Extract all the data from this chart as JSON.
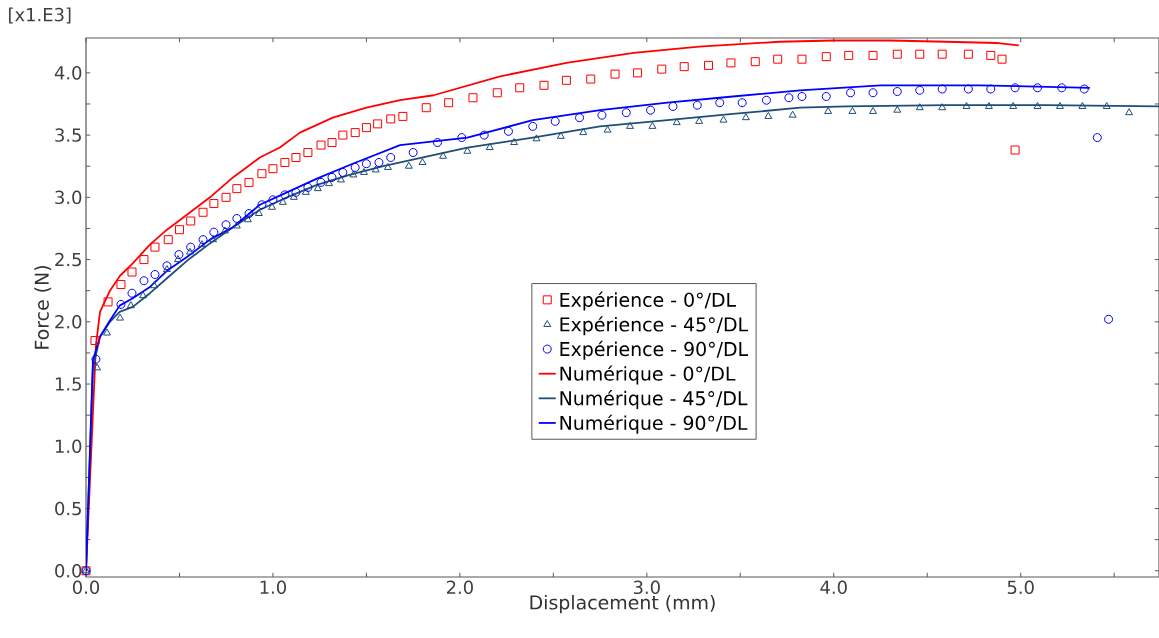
{
  "chart_data": {
    "type": "line",
    "xlabel": "Displacement (mm)",
    "ylabel": "Force (N)",
    "annotations": [
      "[x1.E3]"
    ],
    "xlim": [
      0,
      5.74
    ],
    "ylim": [
      -0.05,
      4.28
    ],
    "xticks": [
      {
        "value": 0,
        "label": "0.0"
      },
      {
        "value": 0.5,
        "label": null
      },
      {
        "value": 1,
        "label": "1.0"
      },
      {
        "value": 1.5,
        "label": null
      },
      {
        "value": 2,
        "label": "2.0"
      },
      {
        "value": 2.5,
        "label": null
      },
      {
        "value": 3,
        "label": "3.0"
      },
      {
        "value": 3.5,
        "label": null
      },
      {
        "value": 4,
        "label": "4.0"
      },
      {
        "value": 4.5,
        "label": null
      },
      {
        "value": 5,
        "label": "5.0"
      },
      {
        "value": 5.5,
        "label": null
      }
    ],
    "yticks": [
      {
        "value": 0,
        "label": "0.0"
      },
      {
        "value": 0.25,
        "label": null
      },
      {
        "value": 0.5,
        "label": "0.5"
      },
      {
        "value": 0.75,
        "label": null
      },
      {
        "value": 1,
        "label": "1.0"
      },
      {
        "value": 1.25,
        "label": null
      },
      {
        "value": 1.5,
        "label": "1.5"
      },
      {
        "value": 1.75,
        "label": null
      },
      {
        "value": 2,
        "label": "2.0"
      },
      {
        "value": 2.25,
        "label": null
      },
      {
        "value": 2.5,
        "label": "2.5"
      },
      {
        "value": 2.75,
        "label": null
      },
      {
        "value": 3,
        "label": "3.0"
      },
      {
        "value": 3.25,
        "label": null
      },
      {
        "value": 3.5,
        "label": "3.5"
      },
      {
        "value": 3.75,
        "label": null
      },
      {
        "value": 4,
        "label": "4.0"
      }
    ],
    "legend": "center",
    "line_style": "solid",
    "series": [
      {
        "name": "Expérience - 0°/DL",
        "type": "scatter",
        "marker": "square",
        "color": "#ff0000",
        "x": [
          0,
          0.048,
          0.118,
          0.187,
          0.246,
          0.31,
          0.369,
          0.44,
          0.5,
          0.56,
          0.626,
          0.684,
          0.749,
          0.807,
          0.872,
          0.941,
          1.0,
          1.064,
          1.123,
          1.187,
          1.257,
          1.316,
          1.374,
          1.44,
          1.5,
          1.56,
          1.63,
          1.695,
          1.82,
          1.94,
          2.07,
          2.2,
          2.32,
          2.45,
          2.57,
          2.7,
          2.83,
          2.95,
          3.08,
          3.2,
          3.33,
          3.45,
          3.58,
          3.7,
          3.83,
          3.96,
          4.08,
          4.21,
          4.34,
          4.46,
          4.58,
          4.72,
          4.84,
          4.9,
          4.97
        ],
        "values": [
          0,
          1.85,
          2.16,
          2.3,
          2.4,
          2.5,
          2.6,
          2.66,
          2.74,
          2.81,
          2.88,
          2.95,
          3.0,
          3.07,
          3.12,
          3.19,
          3.23,
          3.28,
          3.32,
          3.36,
          3.42,
          3.44,
          3.5,
          3.52,
          3.56,
          3.59,
          3.63,
          3.65,
          3.72,
          3.76,
          3.8,
          3.84,
          3.88,
          3.9,
          3.94,
          3.95,
          3.99,
          4.0,
          4.03,
          4.05,
          4.06,
          4.08,
          4.09,
          4.11,
          4.11,
          4.13,
          4.14,
          4.14,
          4.15,
          4.15,
          4.15,
          4.15,
          4.14,
          4.11,
          3.38
        ]
      },
      {
        "name": "Expérience - 45°/DL",
        "type": "scatter",
        "marker": "triangle",
        "color": "#1f4e79",
        "x": [
          0,
          0.059,
          0.112,
          0.182,
          0.24,
          0.305,
          0.364,
          0.433,
          0.492,
          0.556,
          0.62,
          0.68,
          0.743,
          0.807,
          0.866,
          0.925,
          0.995,
          1.053,
          1.112,
          1.176,
          1.24,
          1.3,
          1.364,
          1.43,
          1.487,
          1.55,
          1.615,
          1.727,
          1.8,
          1.91,
          2.04,
          2.16,
          2.29,
          2.41,
          2.54,
          2.66,
          2.79,
          2.91,
          3.03,
          3.16,
          3.28,
          3.41,
          3.53,
          3.65,
          3.78,
          3.97,
          4.1,
          4.21,
          4.34,
          4.46,
          4.58,
          4.71,
          4.83,
          4.96,
          5.09,
          5.21,
          5.33,
          5.46,
          5.58
        ],
        "values": [
          0,
          1.63,
          1.91,
          2.03,
          2.13,
          2.21,
          2.29,
          2.42,
          2.5,
          2.56,
          2.62,
          2.66,
          2.73,
          2.77,
          2.82,
          2.87,
          2.92,
          2.96,
          3.0,
          3.04,
          3.07,
          3.11,
          3.14,
          3.18,
          3.2,
          3.22,
          3.24,
          3.25,
          3.28,
          3.33,
          3.37,
          3.4,
          3.44,
          3.47,
          3.49,
          3.52,
          3.54,
          3.57,
          3.57,
          3.6,
          3.61,
          3.62,
          3.64,
          3.65,
          3.66,
          3.69,
          3.69,
          3.69,
          3.7,
          3.72,
          3.72,
          3.73,
          3.73,
          3.73,
          3.73,
          3.73,
          3.73,
          3.73,
          3.68
        ]
      },
      {
        "name": "Expérience - 90°/DL",
        "type": "scatter",
        "marker": "circle",
        "color": "#0000ff",
        "x": [
          0,
          0.053,
          0.187,
          0.246,
          0.31,
          0.369,
          0.433,
          0.497,
          0.56,
          0.626,
          0.684,
          0.749,
          0.807,
          0.872,
          0.941,
          1.0,
          1.064,
          1.123,
          1.187,
          1.257,
          1.316,
          1.374,
          1.44,
          1.5,
          1.567,
          1.63,
          1.75,
          1.88,
          2.01,
          2.13,
          2.26,
          2.39,
          2.51,
          2.64,
          2.76,
          2.89,
          3.02,
          3.14,
          3.27,
          3.39,
          3.51,
          3.64,
          3.76,
          3.83,
          3.96,
          4.09,
          4.21,
          4.34,
          4.46,
          4.58,
          4.72,
          4.84,
          4.97,
          5.09,
          5.22,
          5.34,
          5.41,
          5.47
        ],
        "values": [
          0,
          1.7,
          2.14,
          2.23,
          2.33,
          2.38,
          2.45,
          2.54,
          2.6,
          2.66,
          2.72,
          2.78,
          2.83,
          2.87,
          2.94,
          2.98,
          3.02,
          3.04,
          3.08,
          3.12,
          3.16,
          3.2,
          3.24,
          3.27,
          3.28,
          3.32,
          3.36,
          3.44,
          3.48,
          3.5,
          3.53,
          3.57,
          3.61,
          3.64,
          3.66,
          3.68,
          3.7,
          3.73,
          3.74,
          3.76,
          3.76,
          3.78,
          3.8,
          3.81,
          3.81,
          3.84,
          3.84,
          3.85,
          3.86,
          3.87,
          3.87,
          3.87,
          3.88,
          3.88,
          3.88,
          3.87,
          3.48,
          2.02
        ]
      },
      {
        "name": "Numérique - 0°/DL",
        "color": "#ff0000",
        "x": [
          0,
          0.053,
          0.075,
          0.128,
          0.182,
          0.25,
          0.342,
          0.433,
          0.54,
          0.663,
          0.786,
          0.93,
          1.037,
          1.144,
          1.32,
          1.5,
          1.68,
          1.86,
          2.21,
          2.57,
          2.93,
          3.28,
          3.71,
          4.0,
          4.3,
          4.6,
          4.87,
          4.99
        ],
        "values": [
          0,
          1.81,
          2.08,
          2.25,
          2.37,
          2.47,
          2.62,
          2.74,
          2.86,
          3.0,
          3.16,
          3.32,
          3.4,
          3.52,
          3.64,
          3.72,
          3.78,
          3.82,
          3.97,
          4.08,
          4.16,
          4.21,
          4.25,
          4.26,
          4.26,
          4.25,
          4.24,
          4.22
        ]
      },
      {
        "name": "Numérique - 45°/DL",
        "color": "#1f4e79",
        "x": [
          0,
          0.037,
          0.075,
          0.128,
          0.18,
          0.25,
          0.342,
          0.433,
          0.54,
          0.663,
          0.786,
          0.93,
          1.075,
          1.235,
          1.41,
          1.59,
          1.68,
          2.04,
          2.39,
          2.75,
          3.11,
          3.46,
          3.82,
          4.07,
          4.6,
          5.14,
          5.74
        ],
        "values": [
          0,
          1.63,
          1.88,
          2.0,
          2.08,
          2.12,
          2.23,
          2.35,
          2.49,
          2.63,
          2.76,
          2.9,
          3.0,
          3.1,
          3.18,
          3.25,
          3.28,
          3.4,
          3.48,
          3.57,
          3.62,
          3.67,
          3.72,
          3.73,
          3.74,
          3.74,
          3.73
        ]
      },
      {
        "name": "Numérique - 90°/DL",
        "color": "#0000ff",
        "x": [
          0,
          0.037,
          0.075,
          0.128,
          0.18,
          0.25,
          0.342,
          0.433,
          0.54,
          0.663,
          0.786,
          0.93,
          1.075,
          1.235,
          1.41,
          1.68,
          2.04,
          2.39,
          2.75,
          3.11,
          3.46,
          3.82,
          4.25,
          4.78,
          5.37
        ],
        "values": [
          0,
          1.69,
          1.88,
          2.01,
          2.13,
          2.19,
          2.28,
          2.41,
          2.52,
          2.66,
          2.76,
          2.94,
          3.04,
          3.15,
          3.26,
          3.42,
          3.48,
          3.62,
          3.7,
          3.76,
          3.81,
          3.86,
          3.9,
          3.9,
          3.88
        ]
      }
    ]
  }
}
